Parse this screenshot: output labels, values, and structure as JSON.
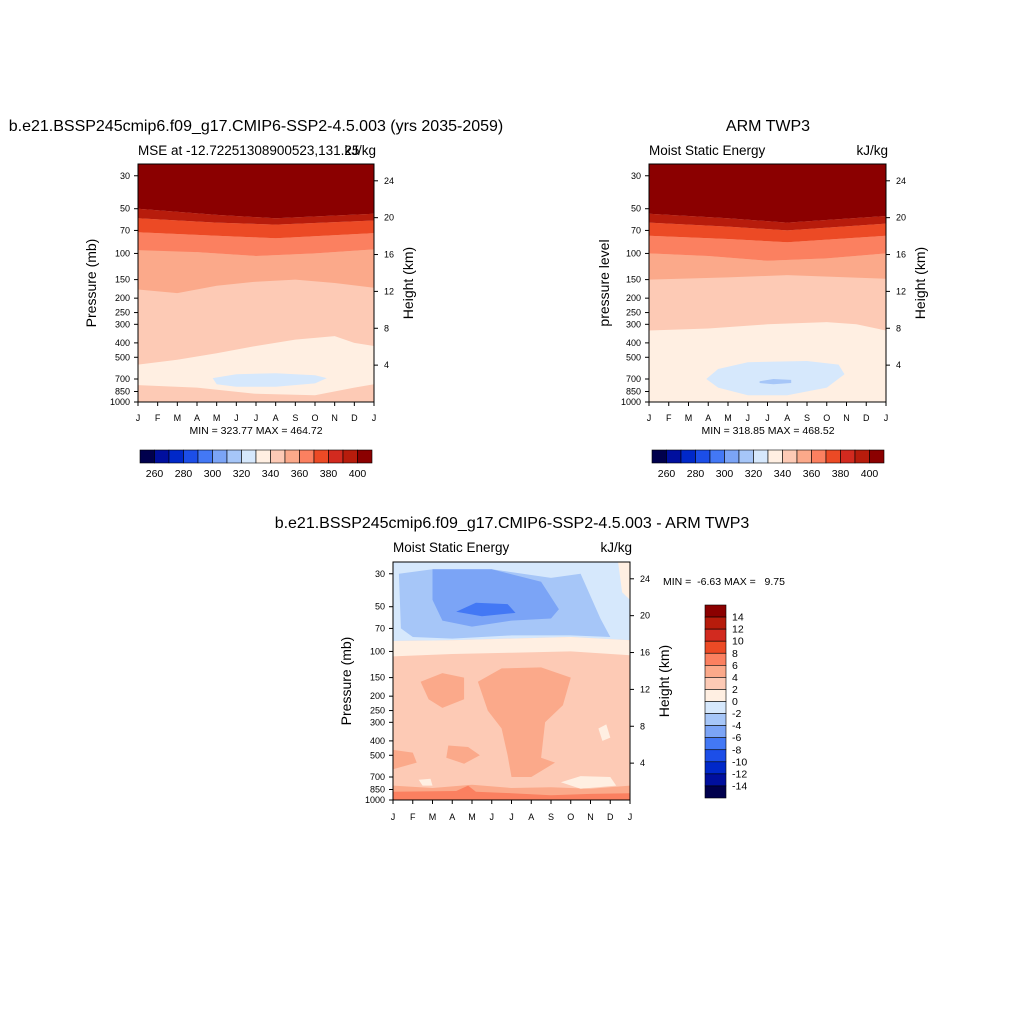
{
  "chart_data": [
    {
      "type": "heatmap",
      "title": "b.e21.BSSP245cmip6.f09_g17.CMIP6-SSP2-4.5.003 (yrs 2035-2059)",
      "subtitle_left": "MSE at -12.72251308900523,131.25",
      "subtitle_right": "kJ/kg",
      "ylabel": "Pressure (mb)",
      "ylabel_right": "Height (km)",
      "x_ticks": [
        "J",
        "F",
        "M",
        "A",
        "M",
        "J",
        "J",
        "A",
        "S",
        "O",
        "N",
        "D",
        "J"
      ],
      "y_ticks": [
        30,
        50,
        70,
        100,
        150,
        200,
        250,
        300,
        400,
        500,
        700,
        850,
        1000
      ],
      "ylim": [
        1000,
        25
      ],
      "height_ticks": [
        24,
        20,
        16,
        12,
        8,
        4
      ],
      "minmax_text": "MIN = 323.77 MAX = 464.72",
      "colorbar": {
        "orientation": "horizontal",
        "levels": [
          260,
          270,
          280,
          290,
          300,
          310,
          320,
          330,
          340,
          350,
          360,
          370,
          380,
          390,
          400
        ],
        "labels": [
          "260",
          "280",
          "300",
          "320",
          "340",
          "360",
          "380",
          "400"
        ]
      },
      "contour_bands": [
        {
          "level_ge": 400,
          "color": "#8b0000",
          "top_mb": 25,
          "bottom_mb": 52
        },
        {
          "level_ge": 380,
          "color": "#d22a1f",
          "top_mb": 52,
          "bottom_mb": 70
        },
        {
          "level_ge": 360,
          "color": "#fb8060",
          "top_mb": 70,
          "bottom_mb": 95
        },
        {
          "level_ge": 340,
          "color": "#fdcab5",
          "top_mb": 95,
          "bottom_mb": 550
        },
        {
          "level_ge": 330,
          "color": "#ffefe2",
          "top_mb": 550,
          "bottom_mb": 1000
        },
        {
          "level_lt": 330,
          "color": "#d6e8fc",
          "region": "Jun-Sep, 650-780 mb"
        }
      ]
    },
    {
      "type": "heatmap",
      "title": "ARM TWP3",
      "subtitle_left": "Moist Static Energy",
      "subtitle_right": "kJ/kg",
      "ylabel": "pressure level",
      "ylabel_right": "Height (km)",
      "x_ticks": [
        "J",
        "F",
        "M",
        "A",
        "M",
        "J",
        "J",
        "A",
        "S",
        "O",
        "N",
        "D",
        "J"
      ],
      "y_ticks": [
        30,
        50,
        70,
        100,
        150,
        200,
        250,
        300,
        400,
        500,
        700,
        850,
        1000
      ],
      "ylim": [
        1000,
        25
      ],
      "height_ticks": [
        24,
        20,
        16,
        12,
        8,
        4
      ],
      "minmax_text": "MIN = 318.85 MAX = 468.52",
      "colorbar": {
        "orientation": "horizontal",
        "levels": [
          260,
          270,
          280,
          290,
          300,
          310,
          320,
          330,
          340,
          350,
          360,
          370,
          380,
          390,
          400
        ],
        "labels": [
          "260",
          "280",
          "300",
          "320",
          "340",
          "360",
          "380",
          "400"
        ]
      },
      "contour_bands": [
        {
          "level_ge": 400,
          "color": "#8b0000",
          "top_mb": 25,
          "bottom_mb": 55
        },
        {
          "level_ge": 380,
          "color": "#d22a1f",
          "top_mb": 55,
          "bottom_mb": 72
        },
        {
          "level_ge": 360,
          "color": "#fb8060",
          "top_mb": 72,
          "bottom_mb": 100
        },
        {
          "level_ge": 340,
          "color": "#fdcab5",
          "top_mb": 100,
          "bottom_mb": 320
        },
        {
          "level_ge": 330,
          "color": "#ffefe2",
          "top_mb": 320,
          "bottom_mb": 1000
        },
        {
          "level_lt": 330,
          "color": "#d6e8fc",
          "region": "May-Oct, 500-900 mb"
        },
        {
          "level_lt": 320,
          "color": "#a6c6f8",
          "region": "Jul-Aug, ~720 mb"
        }
      ]
    },
    {
      "type": "heatmap",
      "title": "b.e21.BSSP245cmip6.f09_g17.CMIP6-SSP2-4.5.003 - ARM TWP3",
      "subtitle_left": "Moist Static Energy",
      "subtitle_right": "kJ/kg",
      "ylabel": "Pressure (mb)",
      "ylabel_right": "Height (km)",
      "x_ticks": [
        "J",
        "F",
        "M",
        "A",
        "M",
        "J",
        "J",
        "A",
        "S",
        "O",
        "N",
        "D",
        "J"
      ],
      "y_ticks": [
        30,
        50,
        70,
        100,
        150,
        200,
        250,
        300,
        400,
        500,
        700,
        850,
        1000
      ],
      "ylim": [
        1000,
        25
      ],
      "height_ticks": [
        24,
        20,
        16,
        12,
        8,
        4
      ],
      "minmax_text": "MIN =  -6.63 MAX =   9.75",
      "colorbar": {
        "orientation": "vertical",
        "levels": [
          14,
          12,
          10,
          8,
          6,
          4,
          2,
          0,
          -2,
          -4,
          -6,
          -8,
          -10,
          -12,
          -14
        ],
        "labels": [
          "14",
          "12",
          "10",
          "8",
          "6",
          "4",
          "2",
          "0",
          "-2",
          "-4",
          "-6",
          "-8",
          "-10",
          "-12",
          "-14"
        ]
      },
      "contour_bands": [
        {
          "range": [
            -2,
            0
          ],
          "color": "#d6e8fc",
          "top_mb": 25,
          "bottom_mb": 85
        },
        {
          "range": [
            -4,
            -2
          ],
          "color": "#a6c6f8",
          "region": "Feb-Sep, 30-85 mb"
        },
        {
          "range": [
            -6,
            -4
          ],
          "color": "#7ba4f6",
          "region": "Mar-Aug, 32-68 mb"
        },
        {
          "range": [
            -8,
            -6
          ],
          "color": "#4378f5",
          "region": "Apr-Jun, ~52 mb"
        },
        {
          "range": [
            0,
            2
          ],
          "color": "#ffefe2",
          "top_mb": 85,
          "bottom_mb": 110
        },
        {
          "range": [
            2,
            4
          ],
          "color": "#fdcab5",
          "top_mb": 110,
          "bottom_mb": 1000
        },
        {
          "range": [
            4,
            6
          ],
          "color": "#fba98a",
          "region": "Feb-Apr 150-220 mb; May-Sep 150-700 mb; 850-1000 mb"
        },
        {
          "range": [
            6,
            8
          ],
          "color": "#f96b3c",
          "region": "near surface, Mar-Jun"
        }
      ]
    }
  ]
}
